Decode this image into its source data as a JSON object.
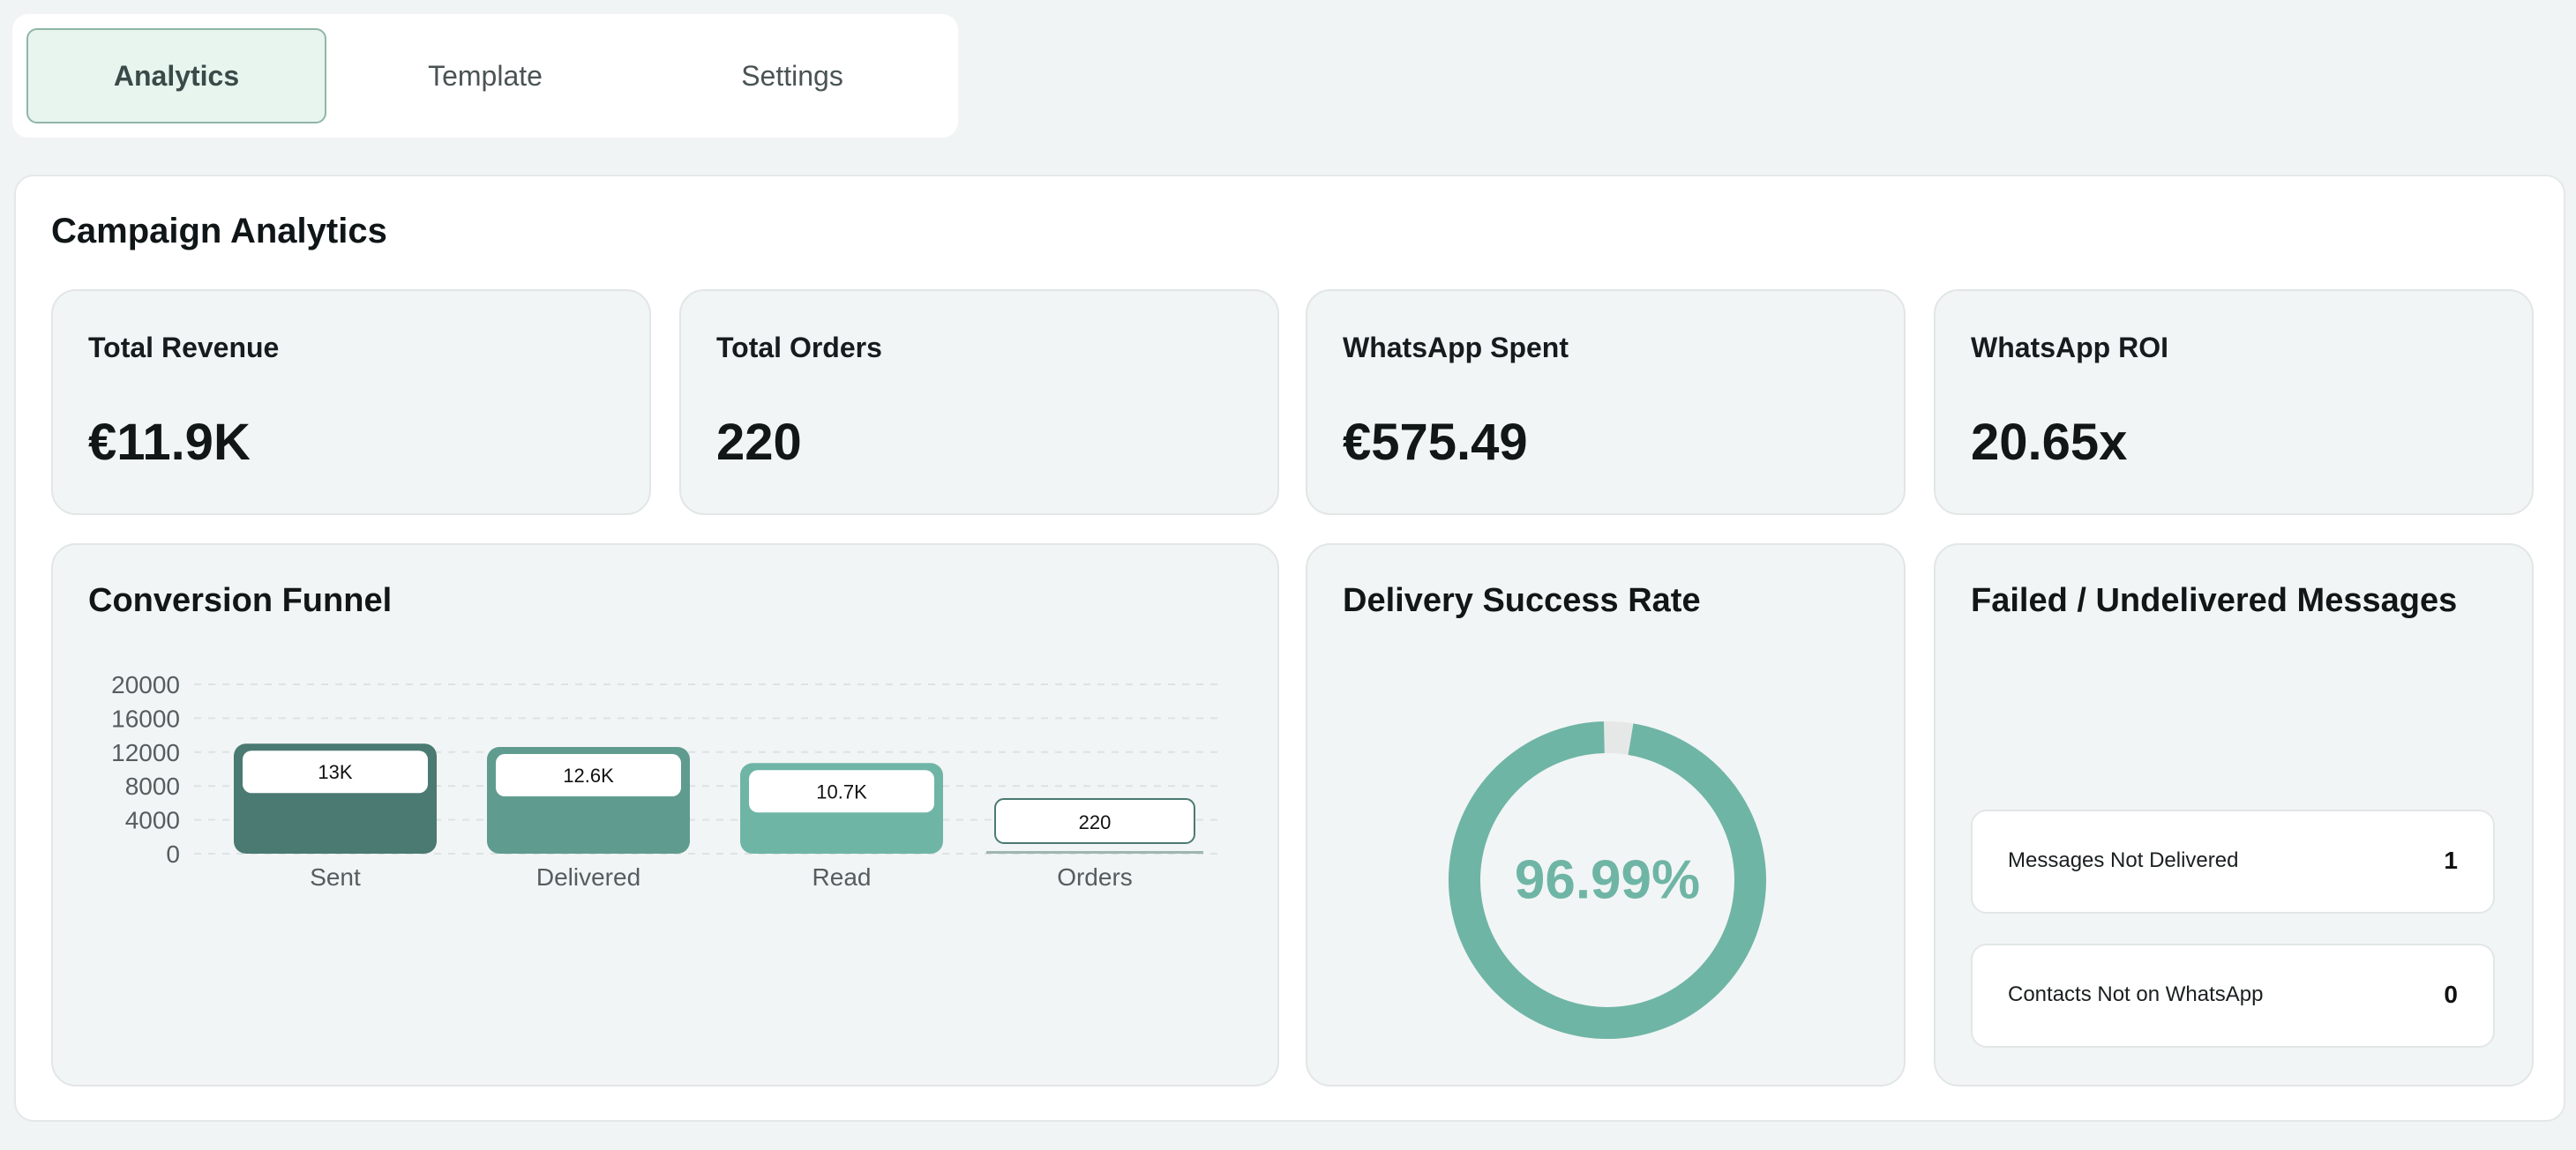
{
  "tabs": [
    {
      "label": "Analytics",
      "active": true
    },
    {
      "label": "Template",
      "active": false
    },
    {
      "label": "Settings",
      "active": false
    }
  ],
  "panel": {
    "title": "Campaign Analytics"
  },
  "kpis": [
    {
      "label": "Total Revenue",
      "value": "€11.9K"
    },
    {
      "label": "Total Orders",
      "value": "220"
    },
    {
      "label": "WhatsApp Spent",
      "value": "€575.49"
    },
    {
      "label": "WhatsApp ROI",
      "value": "20.65x"
    }
  ],
  "funnel": {
    "title": "Conversion Funnel"
  },
  "chart_data": {
    "type": "bar",
    "title": "Conversion Funnel",
    "categories": [
      "Sent",
      "Delivered",
      "Read",
      "Orders"
    ],
    "values": [
      13000,
      12600,
      10700,
      220
    ],
    "data_labels": [
      "13K",
      "12.6K",
      "10.7K",
      "220"
    ],
    "y_ticks": [
      20000,
      16000,
      12000,
      8000,
      4000,
      0
    ],
    "ylim": [
      0,
      20000
    ],
    "grid": true,
    "colors": [
      "#4a7a72",
      "#5f9c8f",
      "#6fb5a6",
      "#8fc7bb"
    ]
  },
  "delivery": {
    "title": "Delivery Success Rate",
    "percent_label": "96.99%",
    "percent": 96.99,
    "color": "#6fb5a6",
    "remainder_color": "#e6e8e8"
  },
  "failed": {
    "title": "Failed / Undelivered Messages",
    "rows": [
      {
        "label": "Messages Not Delivered",
        "count": "1"
      },
      {
        "label": "Contacts Not on WhatsApp",
        "count": "0"
      }
    ]
  }
}
